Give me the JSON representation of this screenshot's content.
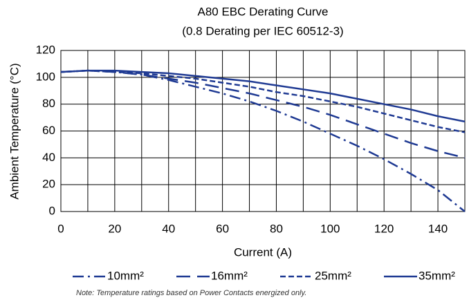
{
  "chart_data": {
    "type": "line",
    "title": "A80 EBC Derating Curve",
    "subtitle": "(0.8 Derating per IEC 60512-3)",
    "x_label": "Current (A)",
    "y_label": "Ambient Temperature (°C)",
    "note": "Note: Temperature ratings based on Power Contacts energized only.",
    "x": [
      0,
      10,
      20,
      30,
      40,
      50,
      60,
      70,
      80,
      90,
      100,
      110,
      120,
      130,
      140,
      150
    ],
    "series": [
      {
        "name": "10mm²",
        "color": "#1f3a93",
        "dash": "dashdot",
        "values": [
          104,
          105,
          104,
          102,
          98,
          93,
          88,
          82,
          75,
          67,
          58,
          49,
          39,
          28,
          16,
          0
        ]
      },
      {
        "name": "16mm²",
        "color": "#1f3a93",
        "dash": "longdash",
        "values": [
          104,
          105,
          104,
          102,
          99,
          96,
          92,
          88,
          83,
          78,
          72,
          65,
          58,
          51,
          45,
          40
        ]
      },
      {
        "name": "25mm²",
        "color": "#1f3a93",
        "dash": "shortdash",
        "values": [
          104,
          105,
          104,
          103,
          101,
          99,
          96,
          93,
          89,
          86,
          82,
          78,
          73,
          68,
          63,
          59
        ]
      },
      {
        "name": "35mm²",
        "color": "#1f3a93",
        "dash": "solid",
        "values": [
          104,
          105,
          105,
          104,
          103,
          101,
          99,
          97,
          94,
          91,
          88,
          84,
          80,
          76,
          71,
          67
        ]
      }
    ],
    "xlim": [
      0,
      150
    ],
    "xticks": [
      0,
      20,
      40,
      60,
      80,
      100,
      120,
      140
    ],
    "ylim": [
      0,
      120
    ],
    "yticks": [
      0,
      20,
      40,
      60,
      80,
      100,
      120
    ],
    "grid": true
  }
}
